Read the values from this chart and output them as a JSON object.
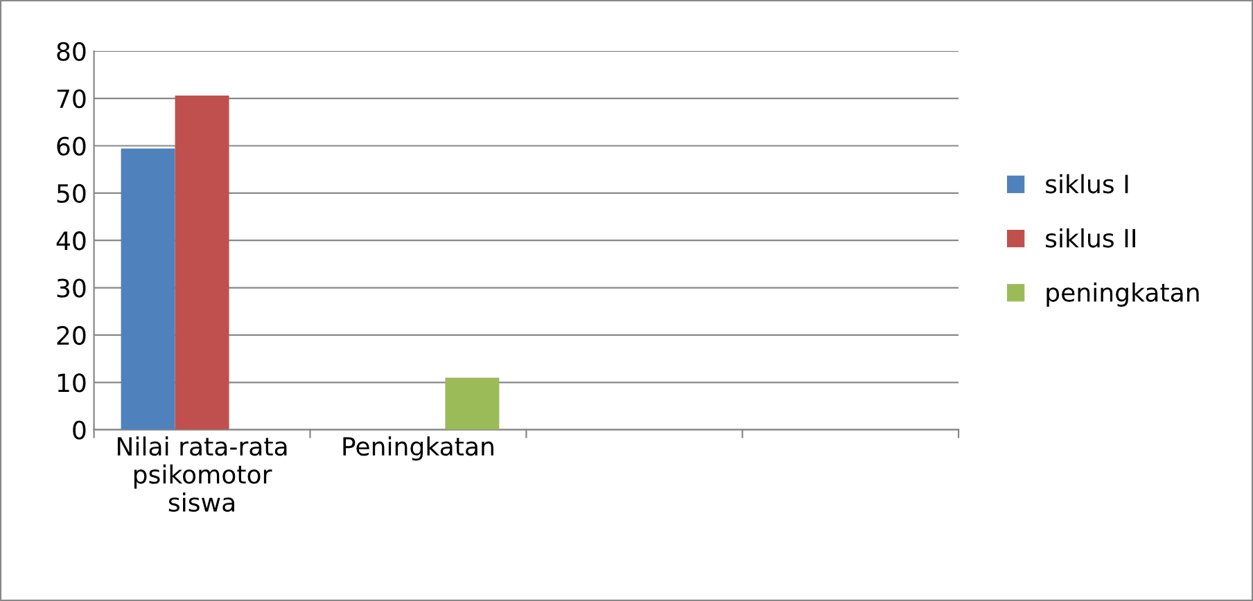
{
  "chart_data": {
    "type": "bar",
    "categories": [
      "Nilai rata-rata psikomotor siswa",
      "Peningkatan",
      null,
      null
    ],
    "series": [
      {
        "name": "siklus I",
        "color": "#4f81bd",
        "values": [
          59.4,
          null,
          null,
          null
        ]
      },
      {
        "name": "siklus II",
        "color": "#c0504d",
        "values": [
          70.6,
          null,
          null,
          null
        ]
      },
      {
        "name": "peningkatan",
        "color": "#9bbb59",
        "values": [
          null,
          11,
          null,
          null
        ]
      }
    ],
    "ylim": [
      0,
      80
    ],
    "yticks": [
      0,
      10,
      20,
      30,
      40,
      50,
      60,
      70,
      80
    ],
    "grid": "y",
    "legend": "right"
  }
}
